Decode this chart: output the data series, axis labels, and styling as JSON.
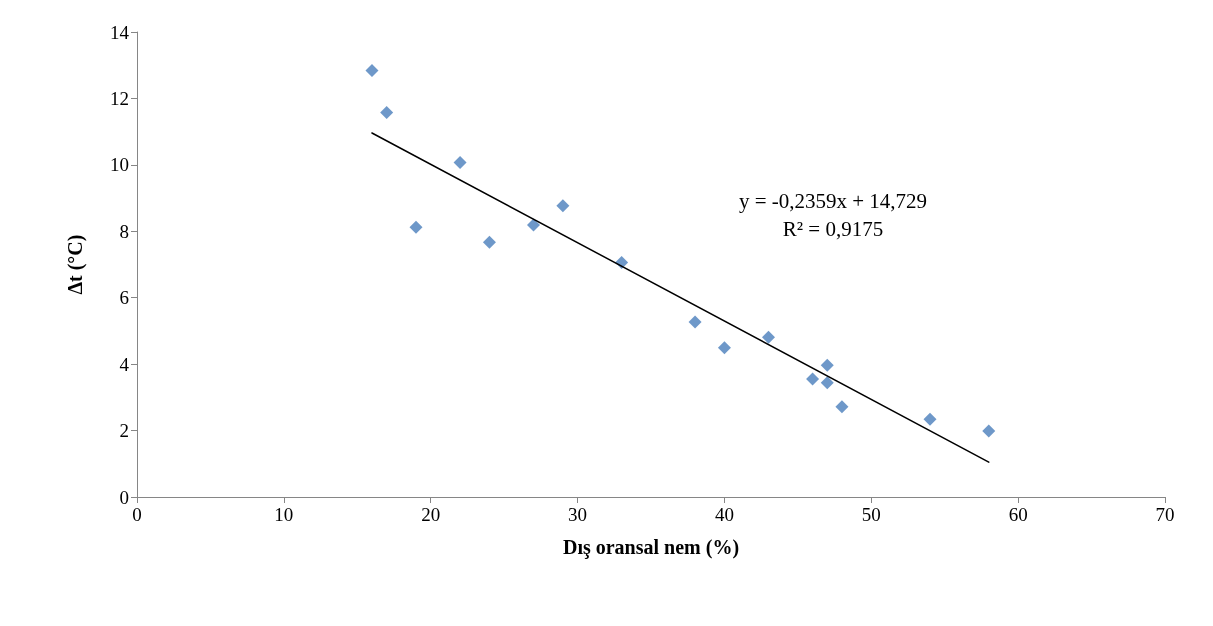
{
  "chart_data": {
    "type": "scatter",
    "xlabel": "Dış oransal nem (%)",
    "ylabel": "Δt (°C)",
    "xlim": [
      0,
      70
    ],
    "xticks": [
      0,
      10,
      20,
      30,
      40,
      50,
      60,
      70
    ],
    "ylim": [
      0,
      14
    ],
    "yticks": [
      0,
      2,
      4,
      6,
      8,
      10,
      12,
      14
    ],
    "grid": false,
    "marker": "diamond",
    "annotations": [
      "y = -0,2359x + 14,729",
      "R² = 0,9175"
    ],
    "series": [
      {
        "color": "#4a7ebb",
        "x": [
          16,
          17,
          19,
          22,
          24,
          27,
          29,
          33,
          38,
          40,
          43,
          47,
          46,
          47,
          48,
          54,
          58
        ],
        "values": [
          12.84,
          11.58,
          8.12,
          10.07,
          7.67,
          8.19,
          8.77,
          7.06,
          5.27,
          4.49,
          4.81,
          3.97,
          3.55,
          3.44,
          2.72,
          2.34,
          1.99
        ]
      },
      {
        "type": "line",
        "color": "#000000",
        "marker": "none",
        "x": [
          16,
          58
        ],
        "values": [
          10.96,
          1.05
        ]
      }
    ]
  }
}
